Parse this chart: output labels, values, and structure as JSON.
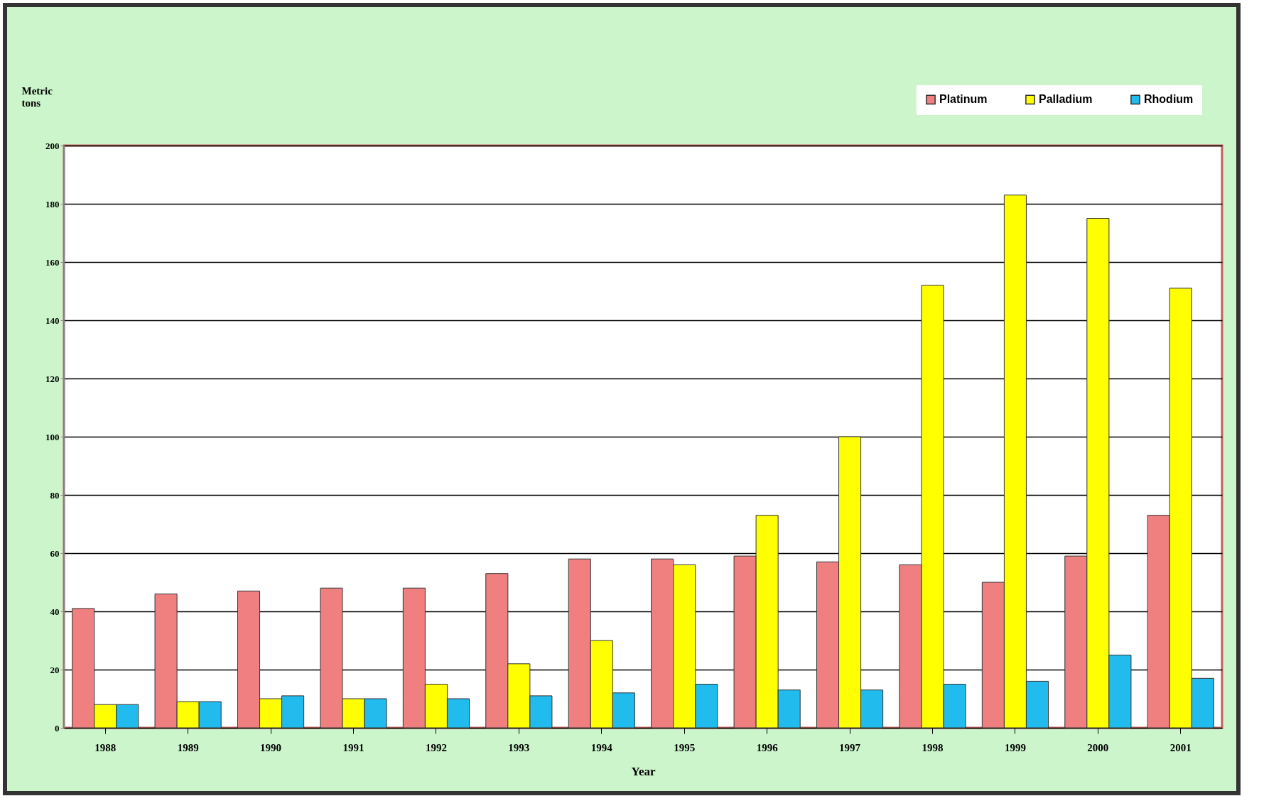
{
  "chart_data": {
    "type": "bar",
    "xlabel": "Year",
    "ylabel": "Metric tons",
    "categories": [
      "1988",
      "1989",
      "1990",
      "1991",
      "1992",
      "1993",
      "1994",
      "1995",
      "1996",
      "1997",
      "1998",
      "1999",
      "2000",
      "2001"
    ],
    "series": [
      {
        "name": "Platinum",
        "color": "#f08080",
        "values": [
          41,
          46,
          47,
          48,
          48,
          53,
          58,
          58,
          59,
          57,
          56,
          50,
          59,
          73
        ]
      },
      {
        "name": "Palladium",
        "color": "#ffff00",
        "values": [
          8,
          9,
          10,
          10,
          15,
          22,
          30,
          56,
          73,
          100,
          152,
          183,
          175,
          151
        ]
      },
      {
        "name": "Rhodium",
        "color": "#22bbee",
        "values": [
          8,
          9,
          11,
          10,
          10,
          11,
          12,
          15,
          13,
          13,
          15,
          16,
          25,
          17
        ]
      }
    ],
    "ylim": [
      0,
      200
    ],
    "yticks": [
      0,
      20,
      40,
      60,
      80,
      100,
      120,
      140,
      160,
      180,
      200
    ],
    "grid": "y",
    "legend": "top right"
  }
}
